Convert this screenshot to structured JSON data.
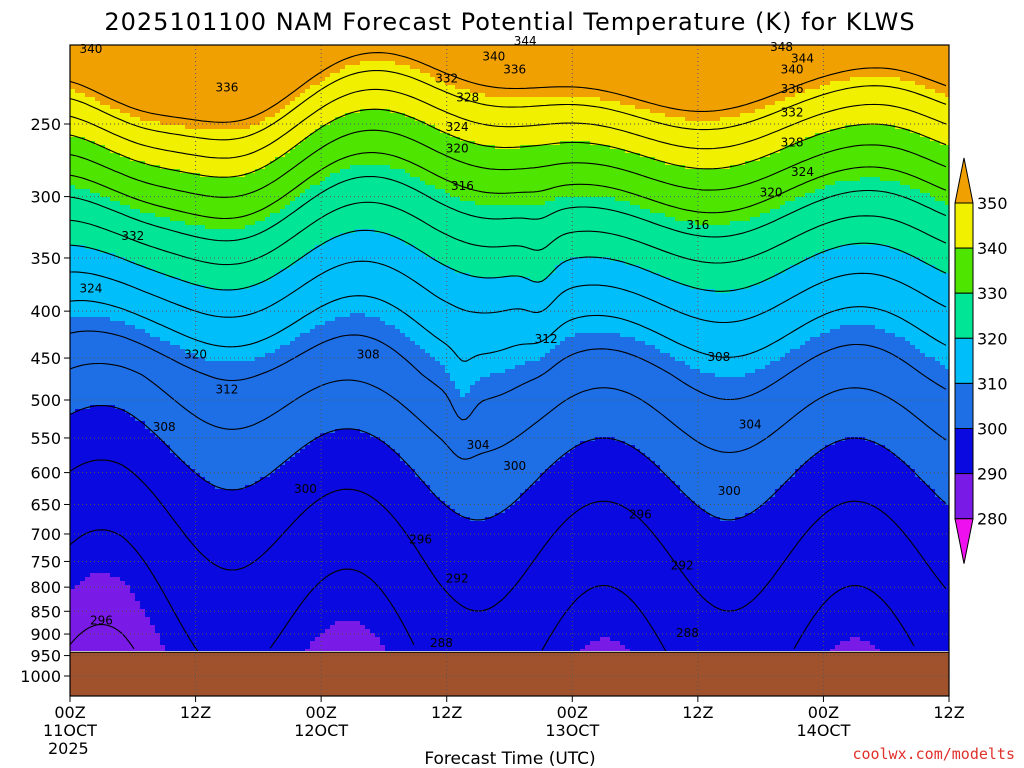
{
  "chart_data": {
    "type": "heatmap",
    "title": "2025101100 NAM Forecast Potential Temperature (K) for KLWS",
    "xlabel": "Forecast Time (UTC)",
    "ylabel": "",
    "credit": "coolwx.com/modelts",
    "y_scale": "log",
    "y_axis_inverted": true,
    "ylim_hpa": [
      1000,
      200
    ],
    "y_ticks": [
      250,
      300,
      350,
      400,
      450,
      500,
      550,
      600,
      650,
      700,
      750,
      800,
      850,
      900,
      950,
      1000
    ],
    "x_range_hours": [
      0,
      84
    ],
    "x_ticks": [
      {
        "hour": 0,
        "line1": "00Z",
        "line2": "11OCT",
        "line3": "2025"
      },
      {
        "hour": 12,
        "line1": "12Z",
        "line2": "",
        "line3": ""
      },
      {
        "hour": 24,
        "line1": "00Z",
        "line2": "12OCT",
        "line3": ""
      },
      {
        "hour": 36,
        "line1": "12Z",
        "line2": "",
        "line3": ""
      },
      {
        "hour": 48,
        "line1": "00Z",
        "line2": "13OCT",
        "line3": ""
      },
      {
        "hour": 60,
        "line1": "12Z",
        "line2": "",
        "line3": ""
      },
      {
        "hour": 72,
        "line1": "00Z",
        "line2": "14OCT",
        "line3": ""
      },
      {
        "hour": 84,
        "line1": "12Z",
        "line2": "",
        "line3": ""
      }
    ],
    "grid": true,
    "surface_pressure_hpa": 942,
    "ground_color": "#a0522d",
    "colorbar": {
      "position": "right",
      "labels": [
        "350",
        "340",
        "330",
        "320",
        "310",
        "300",
        "290",
        "280"
      ],
      "bins": [
        {
          "from": 270,
          "to": 280,
          "color": "#ee10ee"
        },
        {
          "from": 280,
          "to": 290,
          "color": "#7a1ae6"
        },
        {
          "from": 290,
          "to": 300,
          "color": "#0a0ae0"
        },
        {
          "from": 300,
          "to": 310,
          "color": "#1e6ee6"
        },
        {
          "from": 310,
          "to": 320,
          "color": "#00befa"
        },
        {
          "from": 320,
          "to": 330,
          "color": "#00e696"
        },
        {
          "from": 330,
          "to": 340,
          "color": "#4ee600"
        },
        {
          "from": 340,
          "to": 350,
          "color": "#f0f000"
        },
        {
          "from": 350,
          "to": 360,
          "color": "#f0a000"
        }
      ]
    },
    "contour_labels": [
      {
        "value": "340",
        "hour": 2.0,
        "hpa": 207
      },
      {
        "value": "344",
        "hour": 43.5,
        "hpa": 203
      },
      {
        "value": "348",
        "hour": 68.0,
        "hpa": 206
      },
      {
        "value": "340",
        "hour": 40.5,
        "hpa": 211
      },
      {
        "value": "344",
        "hour": 70.0,
        "hpa": 212
      },
      {
        "value": "336",
        "hour": 42.5,
        "hpa": 218
      },
      {
        "value": "340",
        "hour": 69.0,
        "hpa": 218
      },
      {
        "value": "336",
        "hour": 15.0,
        "hpa": 228
      },
      {
        "value": "332",
        "hour": 36.0,
        "hpa": 223
      },
      {
        "value": "336",
        "hour": 69.0,
        "hpa": 229
      },
      {
        "value": "328",
        "hour": 38.0,
        "hpa": 234
      },
      {
        "value": "332",
        "hour": 69.0,
        "hpa": 243
      },
      {
        "value": "324",
        "hour": 37.0,
        "hpa": 252
      },
      {
        "value": "328",
        "hour": 69.0,
        "hpa": 262
      },
      {
        "value": "320",
        "hour": 37.0,
        "hpa": 266
      },
      {
        "value": "324",
        "hour": 70.0,
        "hpa": 282
      },
      {
        "value": "316",
        "hour": 37.5,
        "hpa": 292
      },
      {
        "value": "320",
        "hour": 67.0,
        "hpa": 297
      },
      {
        "value": "316",
        "hour": 60.0,
        "hpa": 322
      },
      {
        "value": "332",
        "hour": 6.0,
        "hpa": 331
      },
      {
        "value": "324",
        "hour": 2.0,
        "hpa": 378
      },
      {
        "value": "312",
        "hour": 45.5,
        "hpa": 429
      },
      {
        "value": "320",
        "hour": 12.0,
        "hpa": 446
      },
      {
        "value": "308",
        "hour": 28.5,
        "hpa": 446
      },
      {
        "value": "308",
        "hour": 62.0,
        "hpa": 449
      },
      {
        "value": "312",
        "hour": 15.0,
        "hpa": 487
      },
      {
        "value": "308",
        "hour": 9.0,
        "hpa": 535
      },
      {
        "value": "304",
        "hour": 39.0,
        "hpa": 560
      },
      {
        "value": "304",
        "hour": 65.0,
        "hpa": 532
      },
      {
        "value": "300",
        "hour": 42.5,
        "hpa": 590
      },
      {
        "value": "300",
        "hour": 22.5,
        "hpa": 625
      },
      {
        "value": "300",
        "hour": 63.0,
        "hpa": 628
      },
      {
        "value": "296",
        "hour": 54.5,
        "hpa": 667
      },
      {
        "value": "296",
        "hour": 33.5,
        "hpa": 710
      },
      {
        "value": "292",
        "hour": 58.5,
        "hpa": 758
      },
      {
        "value": "292",
        "hour": 37.0,
        "hpa": 783
      },
      {
        "value": "296",
        "hour": 3.0,
        "hpa": 870
      },
      {
        "value": "288",
        "hour": 35.5,
        "hpa": 920
      },
      {
        "value": "288",
        "hour": 59.0,
        "hpa": 898
      }
    ]
  }
}
